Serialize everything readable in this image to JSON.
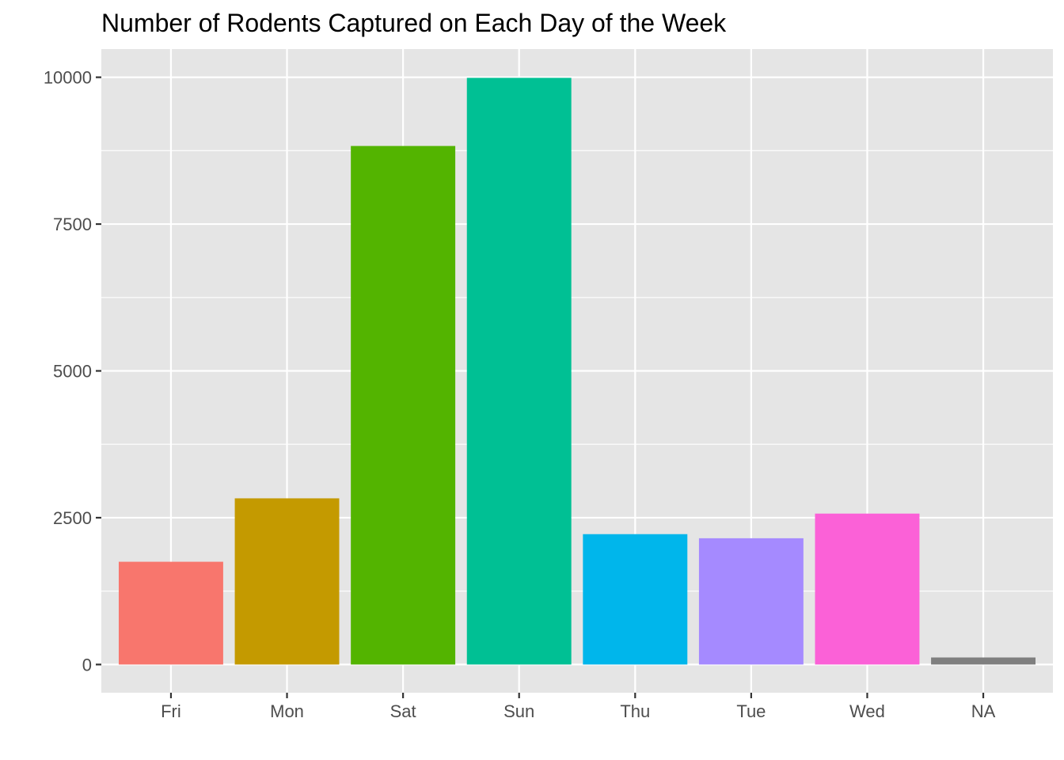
{
  "chart_data": {
    "type": "bar",
    "title": "Number of Rodents Captured on Each Day of the Week",
    "xlabel": "",
    "ylabel": "",
    "categories": [
      "Fri",
      "Mon",
      "Sat",
      "Sun",
      "Thu",
      "Tue",
      "Wed",
      "NA"
    ],
    "values": [
      1750,
      2830,
      8830,
      9990,
      2220,
      2150,
      2570,
      120
    ],
    "colors": [
      "#F8766D",
      "#C49A00",
      "#53B400",
      "#00C094",
      "#00B6EB",
      "#A58AFF",
      "#FB61D7",
      "#7F7F7F"
    ],
    "ylim": [
      -480,
      10480
    ],
    "yticks": [
      0,
      2500,
      5000,
      7500,
      10000
    ],
    "ytick_labels": [
      "0",
      "2500",
      "5000",
      "7500",
      "10000"
    ],
    "grid": true,
    "legend": "none",
    "panel_background": "#E5E5E5",
    "grid_color": "#FFFFFF"
  }
}
